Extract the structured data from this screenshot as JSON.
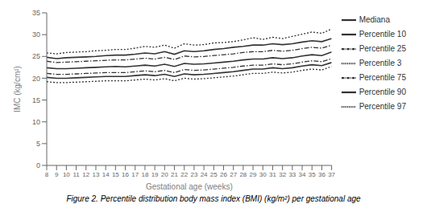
{
  "chart_data": {
    "type": "line",
    "xlabel": "Gestational age (weeks)",
    "ylabel": "IMC (kg/cm²)",
    "caption": "Figure 2. Percentile distribution body mass index (BMI) (kg/m²) per gestational age",
    "x": [
      8,
      9,
      10,
      11,
      12,
      13,
      14,
      15,
      16,
      17,
      18,
      19,
      20,
      21,
      22,
      23,
      24,
      25,
      26,
      27,
      28,
      29,
      30,
      31,
      32,
      33,
      34,
      35,
      36,
      37
    ],
    "xlim": [
      8,
      37
    ],
    "xticks": [
      8,
      9,
      10,
      11,
      12,
      13,
      14,
      15,
      16,
      17,
      18,
      19,
      20,
      21,
      22,
      23,
      24,
      25,
      26,
      27,
      28,
      29,
      30,
      31,
      32,
      33,
      34,
      35,
      36,
      37
    ],
    "ylim": [
      0,
      35
    ],
    "yticks": [
      0,
      5,
      10,
      15,
      20,
      25,
      30,
      35
    ],
    "grid": false,
    "legend": "right",
    "series": [
      {
        "name": "Percentile 97",
        "color": "#333333",
        "line_style": "dotted",
        "values": [
          25.8,
          25.6,
          25.9,
          26.0,
          26.1,
          26.3,
          26.4,
          26.6,
          26.6,
          26.9,
          27.3,
          27.1,
          27.6,
          26.9,
          27.9,
          27.6,
          27.7,
          28.1,
          28.2,
          28.4,
          28.8,
          29.3,
          28.9,
          29.4,
          29.1,
          29.6,
          30.1,
          30.6,
          30.3,
          31.3
        ]
      },
      {
        "name": "Percentile 90",
        "color": "#333333",
        "line_style": "solid",
        "values": [
          24.8,
          24.5,
          24.7,
          24.8,
          24.9,
          25.0,
          25.2,
          25.3,
          25.3,
          25.5,
          25.8,
          25.6,
          26.1,
          25.5,
          26.3,
          26.1,
          26.3,
          26.6,
          26.8,
          27.1,
          27.3,
          27.6,
          27.6,
          27.9,
          27.7,
          27.9,
          28.3,
          28.6,
          28.4,
          29.1
        ]
      },
      {
        "name": "Percentile 75",
        "color": "#333333",
        "line_style": "dashdot",
        "values": [
          23.9,
          23.6,
          23.7,
          23.8,
          23.9,
          24.0,
          24.1,
          24.2,
          24.2,
          24.4,
          24.6,
          24.4,
          24.8,
          24.3,
          25.1,
          24.9,
          25.0,
          25.2,
          25.4,
          25.6,
          25.9,
          26.1,
          26.1,
          26.4,
          26.2,
          26.4,
          26.8,
          27.1,
          26.9,
          27.6
        ]
      },
      {
        "name": "Mediana",
        "color": "#333333",
        "line_style": "solid",
        "values": [
          22.4,
          22.2,
          22.2,
          22.3,
          22.4,
          22.5,
          22.6,
          22.7,
          22.6,
          22.8,
          23.0,
          22.8,
          23.2,
          22.7,
          23.4,
          23.2,
          23.3,
          23.5,
          23.7,
          23.9,
          24.2,
          24.4,
          24.4,
          24.7,
          24.5,
          24.7,
          25.1,
          25.4,
          25.2,
          26.0
        ]
      },
      {
        "name": "Percentile 25",
        "color": "#333333",
        "line_style": "dashdot",
        "values": [
          21.1,
          20.9,
          20.9,
          21.0,
          21.1,
          21.2,
          21.3,
          21.3,
          21.3,
          21.5,
          21.7,
          21.5,
          21.8,
          21.3,
          22.0,
          21.8,
          21.9,
          22.1,
          22.3,
          22.5,
          22.8,
          23.0,
          23.0,
          23.3,
          23.1,
          23.3,
          23.7,
          24.0,
          23.8,
          24.5
        ]
      },
      {
        "name": "Percentile 10",
        "color": "#333333",
        "line_style": "solid",
        "values": [
          20.2,
          20.0,
          20.0,
          20.1,
          20.2,
          20.3,
          20.4,
          20.4,
          20.4,
          20.6,
          20.8,
          20.6,
          20.9,
          20.4,
          21.0,
          20.8,
          20.9,
          21.1,
          21.3,
          21.5,
          21.8,
          22.1,
          22.1,
          22.4,
          22.2,
          22.4,
          22.8,
          23.1,
          22.9,
          23.6
        ]
      },
      {
        "name": "Percentile 3",
        "color": "#333333",
        "line_style": "dotted",
        "values": [
          19.2,
          19.0,
          19.0,
          19.1,
          19.2,
          19.3,
          19.4,
          19.4,
          19.4,
          19.6,
          19.8,
          19.6,
          19.9,
          19.4,
          20.0,
          19.8,
          19.9,
          20.1,
          20.3,
          20.5,
          20.8,
          21.1,
          21.1,
          21.4,
          21.2,
          21.4,
          21.8,
          22.1,
          21.9,
          22.7
        ]
      }
    ]
  }
}
